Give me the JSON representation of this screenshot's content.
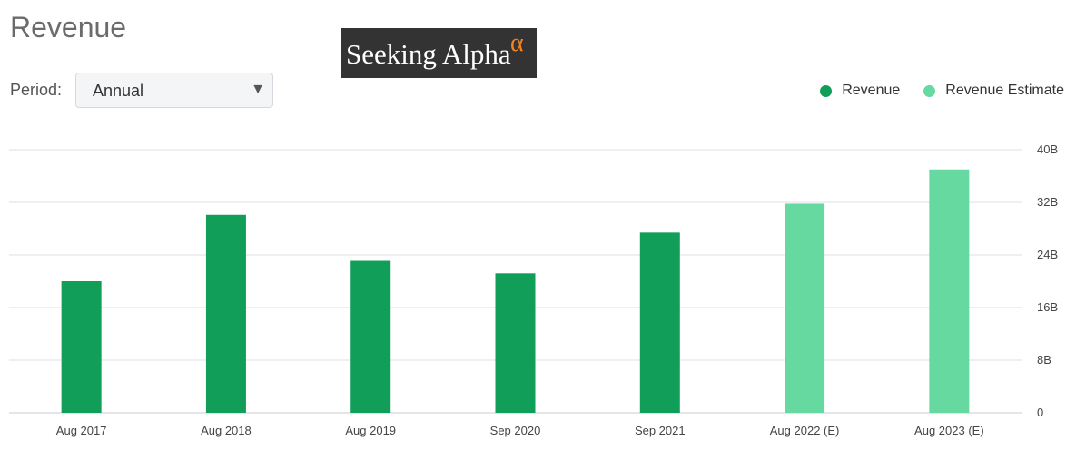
{
  "title": "Revenue",
  "logo": {
    "text": "Seeking Alpha",
    "symbol": "α"
  },
  "period": {
    "label": "Period:",
    "selected": "Annual"
  },
  "legend": [
    {
      "name": "Revenue",
      "color": "#109e58"
    },
    {
      "name": "Revenue Estimate",
      "color": "#66d9a0"
    }
  ],
  "chart_data": {
    "type": "bar",
    "categories": [
      "Aug 2017",
      "Aug 2018",
      "Aug 2019",
      "Sep 2020",
      "Sep 2021",
      "Aug 2022 (E)",
      "Aug 2023 (E)"
    ],
    "values": [
      20.0,
      30.1,
      23.1,
      21.2,
      27.4,
      31.8,
      37.0
    ],
    "series": [
      {
        "name": "Revenue",
        "color": "#109e58",
        "values": [
          20.0,
          30.1,
          23.1,
          21.2,
          27.4,
          null,
          null
        ]
      },
      {
        "name": "Revenue Estimate",
        "color": "#66d9a0",
        "values": [
          null,
          null,
          null,
          null,
          null,
          31.8,
          37.0
        ]
      }
    ],
    "ylim": [
      0,
      40
    ],
    "yticks": [
      0,
      8,
      16,
      24,
      32,
      40
    ],
    "ytick_labels": [
      "0",
      "8B",
      "16B",
      "24B",
      "32B",
      "40B"
    ],
    "unit": "B",
    "grid": true,
    "legend_position": "top-right"
  }
}
